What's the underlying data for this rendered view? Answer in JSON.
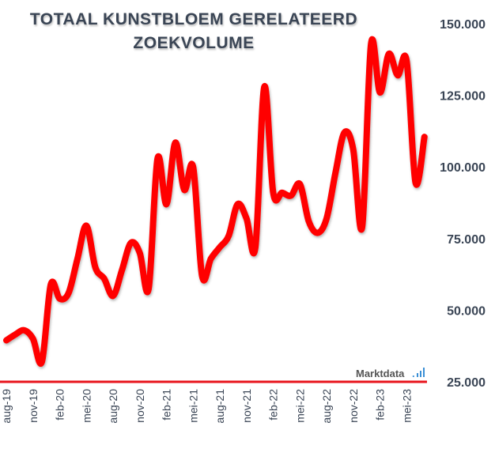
{
  "chart_data": {
    "type": "line",
    "title": "TOTAAL KUNSTBLOEM GERELATEERD ZOEKVOLUME",
    "title_lines": [
      "TOTAAL KUNSTBLOEM GERELATEERD",
      "ZOEKVOLUME"
    ],
    "xlabel": "",
    "ylabel": "",
    "ylim": [
      25000,
      150000
    ],
    "y_ticks": [
      25000,
      50000,
      75000,
      100000,
      125000,
      150000
    ],
    "y_tick_labels": [
      "25.000",
      "50.000",
      "75.000",
      "100.000",
      "125.000",
      "150.000"
    ],
    "y_axis_position": "right",
    "grid": false,
    "x_tick_labels": [
      "aug-19",
      "nov-19",
      "feb-20",
      "mei-20",
      "aug-20",
      "nov-20",
      "feb-21",
      "mei-21",
      "aug-21",
      "nov-21",
      "feb-22",
      "mei-22",
      "aug-22",
      "nov-22",
      "feb-23",
      "mei-23"
    ],
    "x_tick_every_months": 3,
    "series": [
      {
        "name": "Zoekvolume",
        "color": "#ff0000",
        "start_month": "aug-19",
        "end_month": "jul-23",
        "values": [
          39500,
          41500,
          43000,
          40000,
          32000,
          59000,
          54000,
          56000,
          68000,
          79500,
          65000,
          61000,
          55000,
          64000,
          73500,
          70000,
          57500,
          103000,
          87000,
          108500,
          92000,
          100000,
          62000,
          68000,
          72000,
          76000,
          87000,
          82000,
          72000,
          128000,
          91000,
          91000,
          90000,
          94000,
          81000,
          77000,
          82000,
          98000,
          112000,
          106000,
          79000,
          143000,
          126000,
          139500,
          132000,
          137000,
          94500,
          110500
        ]
      }
    ],
    "watermark": "Marktdata",
    "colors": {
      "text": "#3a4555",
      "line": "#ff0000",
      "baseline": "#e8141c",
      "logo_bars": "#3a8fd6"
    }
  }
}
